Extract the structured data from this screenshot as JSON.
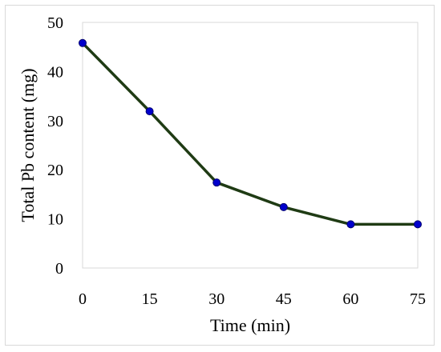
{
  "chart_data": {
    "type": "line",
    "title": "",
    "xlabel": "Time (min)",
    "ylabel": "Total Pb content (mg)",
    "x": [
      0,
      15,
      30,
      45,
      60,
      75
    ],
    "xlim": [
      0,
      75
    ],
    "ylim": [
      0,
      50
    ],
    "xticks": [
      "0",
      "15",
      "30",
      "45",
      "60",
      "75"
    ],
    "yticks": [
      "0",
      "10",
      "20",
      "30",
      "40",
      "50"
    ],
    "series": [
      {
        "values": [
          45.8,
          31.9,
          17.4,
          12.4,
          8.9,
          8.9
        ]
      }
    ],
    "grid": false,
    "legend": "none",
    "line_color": "#1f3b14",
    "marker_color": "#0000cc"
  }
}
